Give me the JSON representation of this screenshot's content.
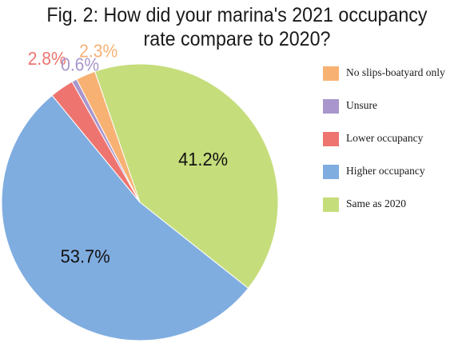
{
  "title": {
    "line1": "Fig. 2: How did your marina's 2021 occupancy",
    "line2": "rate compare to 2020?"
  },
  "chart_data": {
    "type": "pie",
    "slices": [
      {
        "name": "Same as 2020",
        "value": 41.2,
        "label": "41.2%",
        "color": "#c6dd7c"
      },
      {
        "name": "Higher occupancy",
        "value": 53.7,
        "label": "53.7%",
        "color": "#80ade0"
      },
      {
        "name": "Lower occupancy",
        "value": 2.8,
        "label": "2.8%",
        "color": "#ee7470"
      },
      {
        "name": "Unsure",
        "value": 0.6,
        "label": "0.6%",
        "color": "#a896cc"
      },
      {
        "name": "No slips-boatyard only",
        "value": 2.3,
        "label": "2.3%",
        "color": "#f7b173"
      }
    ],
    "legend": [
      {
        "name": "No slips-boatyard only",
        "color": "#f7b173"
      },
      {
        "name": "Unsure",
        "color": "#a896cc"
      },
      {
        "name": "Lower occupancy",
        "color": "#ee7470"
      },
      {
        "name": "Higher occupancy",
        "color": "#80ade0"
      },
      {
        "name": "Same as 2020",
        "color": "#c6dd7c"
      }
    ],
    "legend_position": "right"
  }
}
